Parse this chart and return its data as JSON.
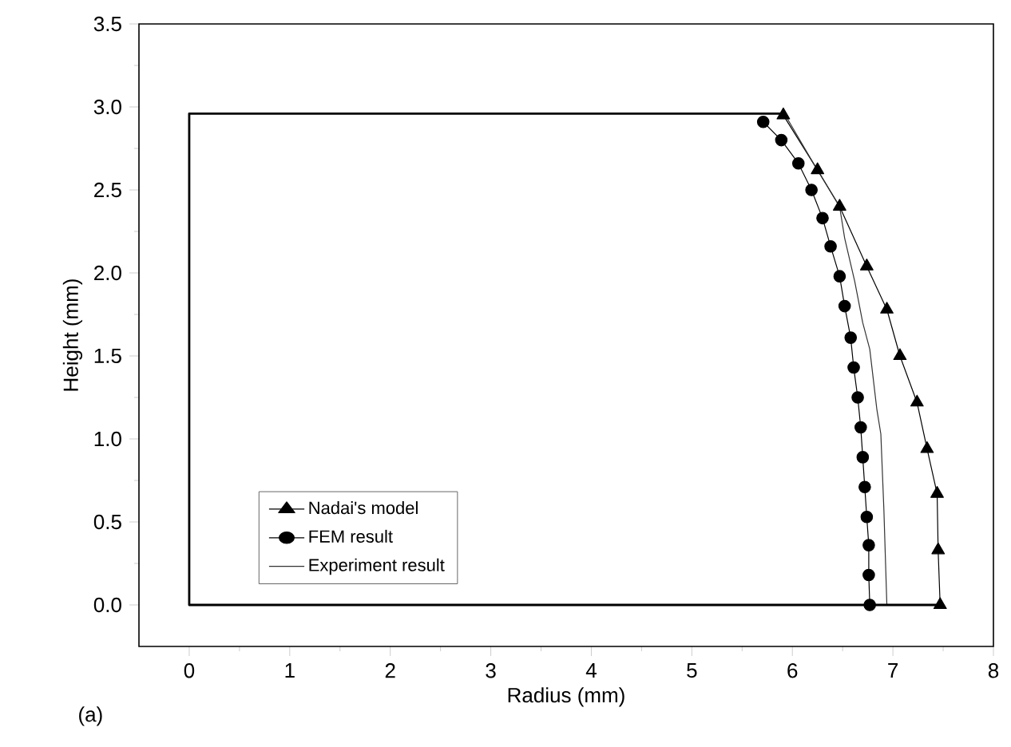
{
  "chart_data": {
    "type": "line",
    "xlabel": "Radius (mm)",
    "ylabel": "Height (mm)",
    "annotations": [
      "(a)"
    ],
    "xlim": [
      -0.5,
      8
    ],
    "ylim": [
      -0.25,
      3.5
    ],
    "xticks": [
      0,
      1,
      2,
      3,
      4,
      5,
      6,
      7,
      8
    ],
    "yticks": [
      {
        "value": 0,
        "label": "0.0"
      },
      {
        "value": 0.5,
        "label": "0.5"
      },
      {
        "value": 1,
        "label": "1.0"
      },
      {
        "value": 1.5,
        "label": "1.5"
      },
      {
        "value": 2,
        "label": "2.0"
      },
      {
        "value": 2.5,
        "label": "2.5"
      },
      {
        "value": 3,
        "label": "3.0"
      },
      {
        "value": 3.5,
        "label": "3.5"
      }
    ],
    "grid": false,
    "legend": "bottom left",
    "series": [
      {
        "name": "Nadai's model",
        "color": "#000000",
        "marker": "triangle",
        "x": [
          5.91,
          6.25,
          6.47,
          6.74,
          6.94,
          7.07,
          7.24,
          7.34,
          7.44,
          7.45,
          7.47
        ],
        "values": [
          2.95,
          2.62,
          2.4,
          2.04,
          1.78,
          1.5,
          1.22,
          0.94,
          0.67,
          0.33,
          0
        ]
      },
      {
        "name": "FEM result",
        "color": "#000000",
        "marker": "circle",
        "x": [
          5.71,
          5.89,
          6.06,
          6.19,
          6.3,
          6.38,
          6.47,
          6.52,
          6.58,
          6.61,
          6.65,
          6.68,
          6.7,
          6.72,
          6.74,
          6.76,
          6.76,
          6.77
        ],
        "values": [
          2.91,
          2.8,
          2.66,
          2.5,
          2.33,
          2.16,
          1.98,
          1.8,
          1.61,
          1.43,
          1.25,
          1.07,
          0.89,
          0.71,
          0.53,
          0.36,
          0.18,
          0
        ]
      },
      {
        "name": "Experiment result",
        "color": "#333333",
        "marker": "none",
        "x": [
          5.92,
          6.2,
          6.47,
          6.52,
          6.62,
          6.7,
          6.77,
          6.84,
          6.88,
          6.91,
          6.94
        ],
        "values": [
          2.96,
          2.67,
          2.4,
          2.21,
          1.95,
          1.7,
          1.54,
          1.18,
          1.03,
          0.58,
          0
        ]
      },
      {
        "color": "#000000",
        "marker": "none",
        "x": [
          7.47,
          0,
          0,
          5.91
        ],
        "values": [
          0,
          0,
          2.96,
          2.96
        ]
      }
    ]
  }
}
